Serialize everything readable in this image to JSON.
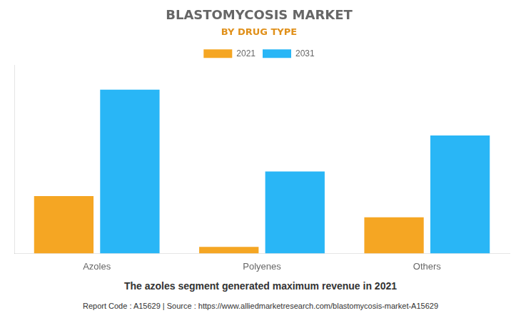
{
  "chart_data": {
    "type": "bar",
    "title": "BLASTOMYCOSIS MARKET",
    "subtitle": "BY DRUG TYPE",
    "categories": [
      "Azoles",
      "Polyenes",
      "Others"
    ],
    "series": [
      {
        "name": "2021",
        "color": "#F5A623",
        "values": [
          35,
          4,
          22
        ]
      },
      {
        "name": "2031",
        "color": "#29B6F6",
        "values": [
          100,
          50,
          72
        ]
      }
    ],
    "ylim": [
      0,
      115
    ],
    "grid": false,
    "legend": "top",
    "tick_labels": "x",
    "annotations": [
      "The azoles segment generated maximum revenue in 2021",
      "Report Code : A15629  |  Source : https://www.alliedmarketresearch.com/blastomycosis-market-A15629"
    ]
  }
}
